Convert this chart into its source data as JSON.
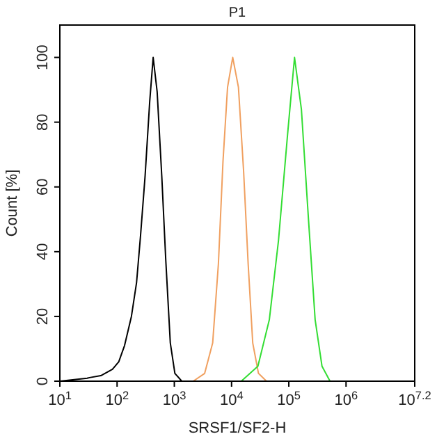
{
  "chart_data": {
    "type": "line",
    "title": "P1",
    "xlabel": "SRSF1/SF2-H",
    "ylabel": "Count [%]",
    "log": "x",
    "marker": "none",
    "line_style": "solid",
    "grid": false,
    "xlim": [
      10,
      15848932
    ],
    "ylim": [
      0,
      110
    ],
    "xticks": [
      {
        "value": 10,
        "label": "10$^{1}$"
      },
      {
        "value": 100,
        "label": "10$^{2}$"
      },
      {
        "value": 1000,
        "label": "10$^{3}$"
      },
      {
        "value": 10000,
        "label": "10$^{4}$"
      },
      {
        "value": 100000,
        "label": "10$^{5}$"
      },
      {
        "value": 1000000,
        "label": "10$^{6}$"
      },
      {
        "value": 15848932,
        "label": "10$^{7.2}$"
      }
    ],
    "yticks": [
      0,
      20,
      40,
      60,
      80,
      100
    ],
    "series": [
      {
        "color": "#000000",
        "x": [
          10,
          30,
          33,
          52,
          83,
          107,
          135,
          178,
          219,
          257,
          309,
          372,
          427,
          501,
          603,
          708,
          851,
          1023,
          1349
        ],
        "values": [
          0,
          0.9,
          1.1,
          1.7,
          3.7,
          6,
          11,
          20,
          30.5,
          45,
          63.5,
          86.5,
          100,
          89.4,
          63.5,
          37.6,
          11.8,
          2.4,
          0
        ]
      },
      {
        "color": "#f0a060",
        "x": [
          2138,
          3388,
          4677,
          5888,
          7079,
          8511,
          10471,
          13183,
          16218,
          19498,
          23442,
          29512,
          40738
        ],
        "values": [
          0,
          2.4,
          11.8,
          36.2,
          67.8,
          90.8,
          100,
          90.8,
          65,
          36.2,
          11.8,
          2.4,
          0
        ]
      },
      {
        "color": "#33dd33",
        "x": [
          14791,
          28840,
          45709,
          66069,
          95499,
          125893,
          165959,
          218776,
          288403,
          380189,
          524807
        ],
        "values": [
          0,
          4.6,
          19,
          43.5,
          76.5,
          100,
          84,
          51,
          19,
          4.6,
          0
        ]
      }
    ]
  }
}
